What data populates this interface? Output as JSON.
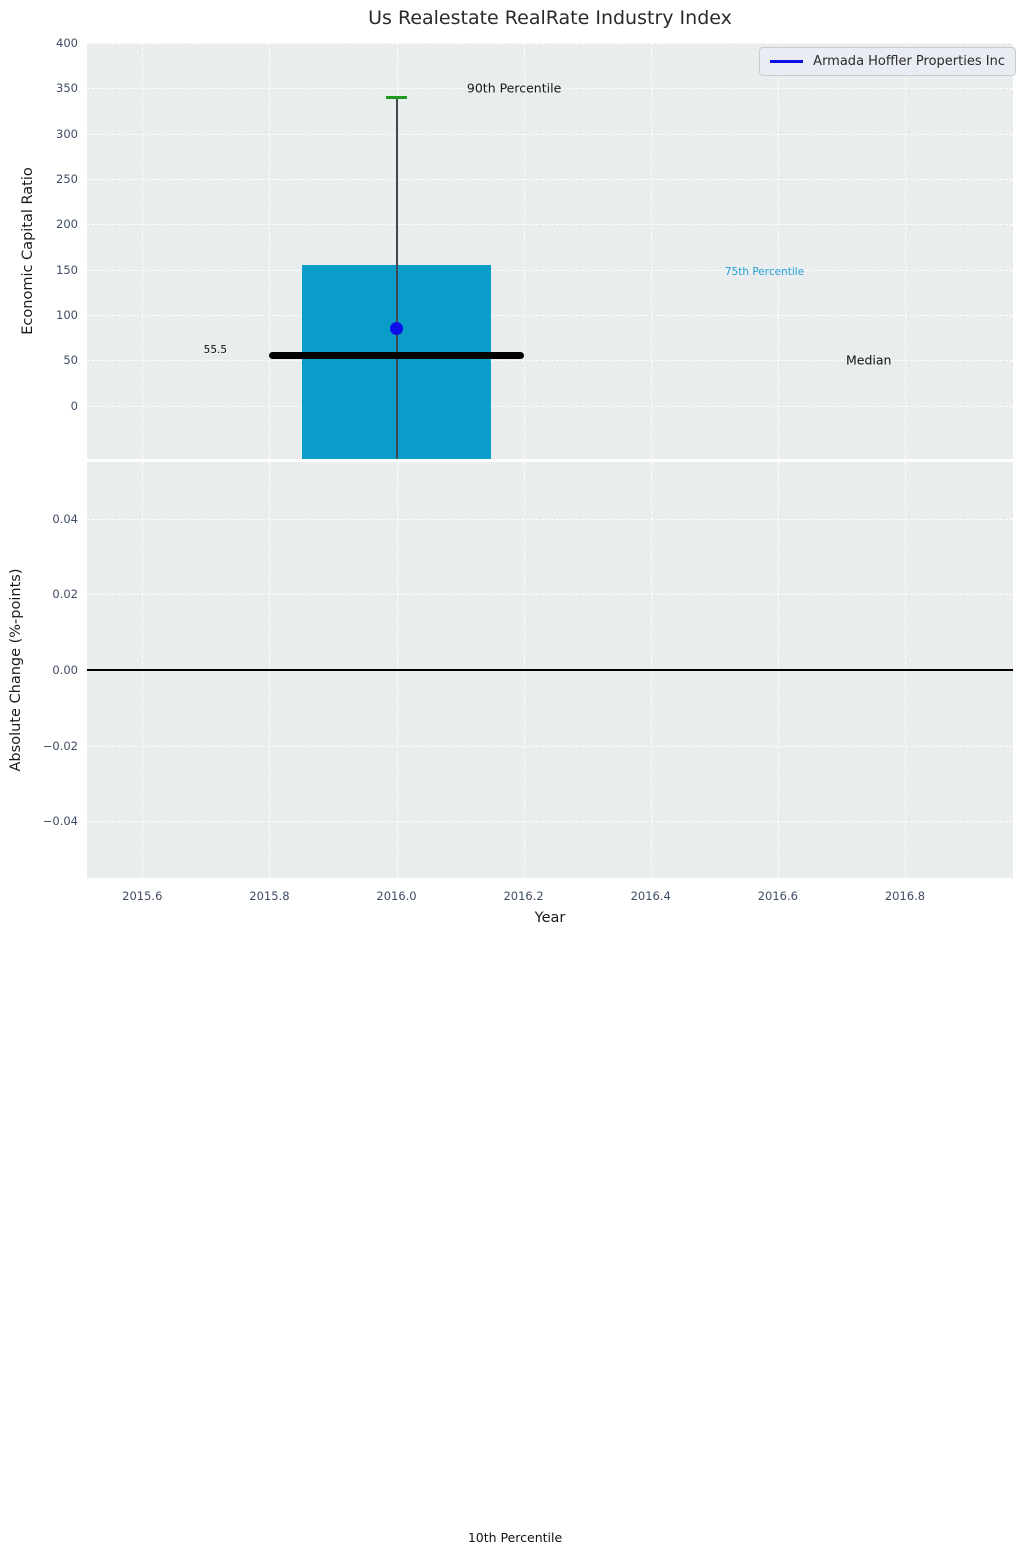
{
  "chart_data": {
    "type": "boxplot",
    "title": "Us Realestate RealRate Industry Index",
    "legend": {
      "label": "Armada Hoffler Properties Inc",
      "line_color": "#0d0dea",
      "position": "upper right"
    },
    "x_axis": {
      "label": "Year",
      "lim": [
        2015.513,
        2016.97
      ],
      "ticks": [
        {
          "v": 2015.6,
          "label": "2015.6"
        },
        {
          "v": 2015.8,
          "label": "2015.8"
        },
        {
          "v": 2016.0,
          "label": "2016.0"
        },
        {
          "v": 2016.2,
          "label": "2016.2"
        },
        {
          "v": 2016.4,
          "label": "2016.4"
        },
        {
          "v": 2016.6,
          "label": "2016.6"
        },
        {
          "v": 2016.8,
          "label": "2016.8"
        }
      ]
    },
    "top_panel": {
      "ylabel": "Economic Capital Ratio",
      "ylim": [
        -59,
        400
      ],
      "yticks": [
        {
          "v": 0,
          "label": "0"
        },
        {
          "v": 50,
          "label": "50"
        },
        {
          "v": 100,
          "label": "100"
        },
        {
          "v": 150,
          "label": "150"
        },
        {
          "v": 200,
          "label": "200"
        },
        {
          "v": 250,
          "label": "250"
        },
        {
          "v": 300,
          "label": "300"
        },
        {
          "v": 350,
          "label": "350"
        },
        {
          "v": 400,
          "label": "400"
        }
      ],
      "grid": true,
      "box": {
        "x": 2016.0,
        "p90": 340,
        "p75": 155,
        "median": 55.5,
        "company_value": 85,
        "box_bottom_clipped": true,
        "body_half_width": 0.149,
        "median_half_width": 0.2,
        "cap_half_width": 0.017,
        "body_color": "#0a9dca",
        "whisker_color": "#3d4a54",
        "cap_color": "#1f9a1f",
        "median_color": "#000000",
        "dot_color": "#0d0dea"
      },
      "annotations": [
        {
          "text": "90th Percentile",
          "x": 2016.185,
          "y": 350,
          "color": "#1a1a1a",
          "size": 12.5
        },
        {
          "text": "75th Percentile",
          "x": 2016.579,
          "y": 147,
          "color": "#229fd4",
          "size": 10.5
        },
        {
          "text": "Median",
          "x": 2016.743,
          "y": 50,
          "color": "#111111",
          "size": 12.5
        },
        {
          "text": "55.5",
          "x": 2015.715,
          "y": 61,
          "color": "#111111",
          "size": 10.5
        }
      ]
    },
    "bottom_panel": {
      "ylabel": "Absolute Change (%-points)",
      "ylim": [
        -0.055,
        0.055
      ],
      "yticks": [
        {
          "v": 0.04,
          "label": "0.04"
        },
        {
          "v": 0.02,
          "label": "0.02"
        },
        {
          "v": 0.0,
          "label": "0.00"
        },
        {
          "v": -0.02,
          "label": "−0.02"
        },
        {
          "v": -0.04,
          "label": "−0.04"
        }
      ],
      "grid": true,
      "zero_line": 0.0,
      "series_values": []
    },
    "figure_label": "10th Percentile"
  }
}
